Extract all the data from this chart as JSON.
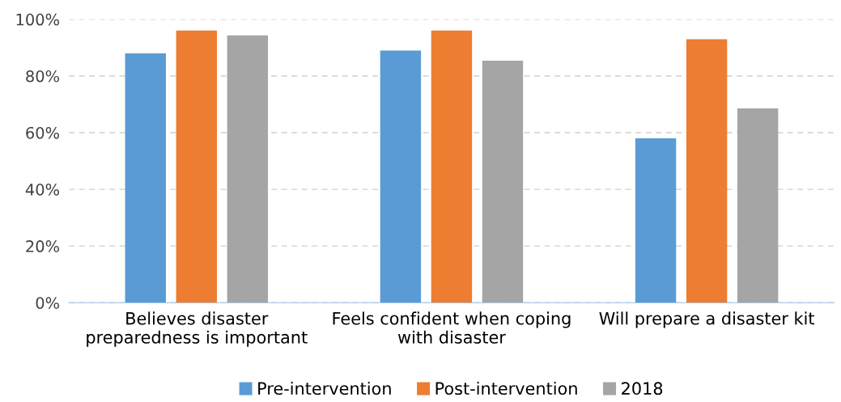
{
  "chart_data": {
    "type": "bar",
    "categories": [
      "Believes disaster\npreparedness is important",
      "Feels confident when coping\nwith disaster",
      "Will prepare a disaster kit"
    ],
    "series": [
      {
        "name": "Pre-intervention",
        "color": "#5b9bd5",
        "values": [
          88,
          89,
          58
        ]
      },
      {
        "name": "Post-intervention",
        "color": "#ed7d31",
        "values": [
          96,
          96,
          93
        ]
      },
      {
        "name": "2018",
        "color": "#a5a5a5",
        "values": [
          94.3,
          85.4,
          68.6
        ]
      }
    ],
    "ylim": [
      0,
      100
    ],
    "yticks": [
      {
        "value": 0,
        "label": "0%"
      },
      {
        "value": 20,
        "label": "20%"
      },
      {
        "value": 40,
        "label": "40%"
      },
      {
        "value": 60,
        "label": "60%"
      },
      {
        "value": 80,
        "label": "80%"
      },
      {
        "value": 100,
        "label": "100%"
      }
    ],
    "grid": "y",
    "line_style": "dashed",
    "legend": "bottom"
  }
}
